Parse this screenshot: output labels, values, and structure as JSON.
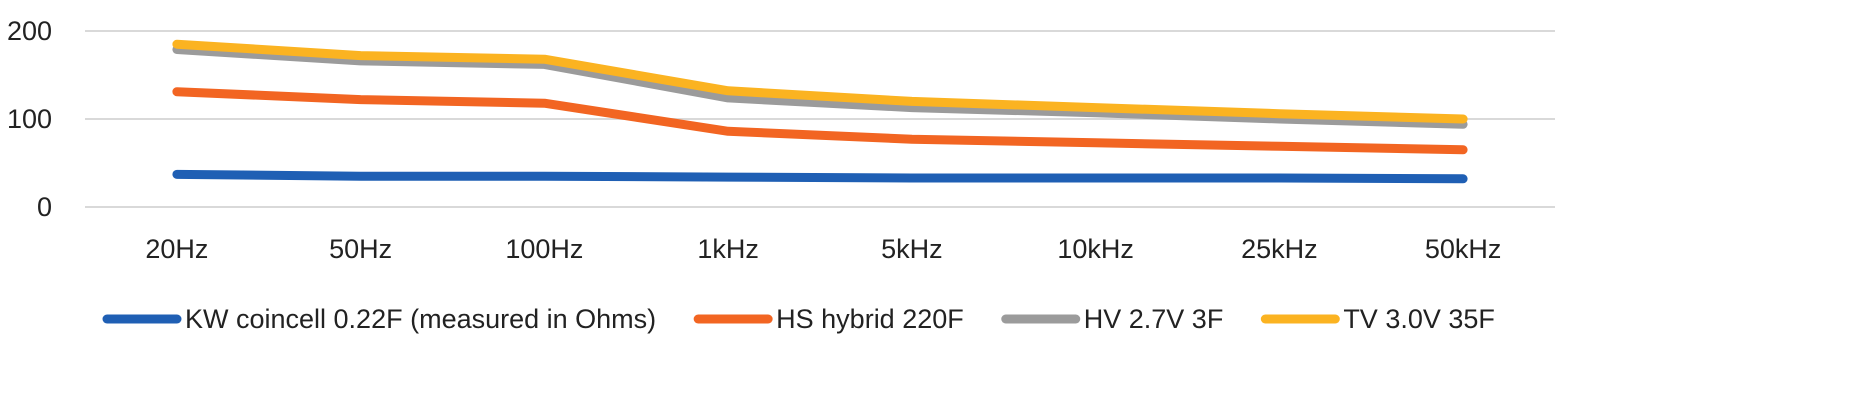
{
  "chart_data": {
    "type": "line",
    "title": "",
    "xlabel": "",
    "ylabel": "",
    "categories": [
      "20Hz",
      "50Hz",
      "100Hz",
      "1kHz",
      "5kHz",
      "10kHz",
      "25kHz",
      "50kHz"
    ],
    "ylim": [
      0,
      200
    ],
    "yticks": [
      0,
      100,
      200
    ],
    "grid": true,
    "legend_position": "bottom",
    "series": [
      {
        "name": "KW coincell 0.22F (measured in Ohms)",
        "color": "#1f5fb4",
        "values": [
          37,
          35,
          35,
          34,
          33,
          33,
          33,
          32
        ]
      },
      {
        "name": "HS hybrid 220F",
        "color": "#f26522",
        "values": [
          131,
          122,
          118,
          86,
          77,
          73,
          69,
          65
        ]
      },
      {
        "name": "HV 2.7V 3F",
        "color": "#9b9b9b",
        "values": [
          179,
          166,
          162,
          124,
          113,
          107,
          100,
          94
        ]
      },
      {
        "name": "TV 3.0V 35F",
        "color": "#fbb321",
        "values": [
          185,
          172,
          168,
          132,
          120,
          113,
          106,
          100
        ]
      }
    ]
  }
}
